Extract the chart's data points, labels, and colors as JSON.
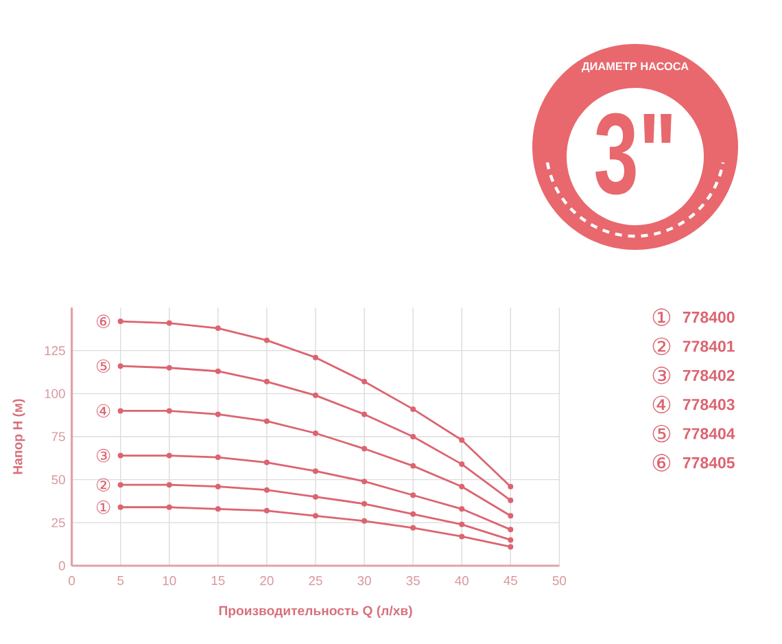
{
  "chart_data": {
    "type": "line",
    "xlabel": "Производительность Q (л/хв)",
    "ylabel": "Напор H (м)",
    "x": [
      5,
      10,
      15,
      20,
      25,
      30,
      35,
      40,
      45
    ],
    "series": [
      {
        "name": "①",
        "color": "#dc6470",
        "values": [
          34,
          34,
          33,
          32,
          29,
          26,
          22,
          17,
          11
        ]
      },
      {
        "name": "②",
        "color": "#dc6470",
        "values": [
          47,
          47,
          46,
          44,
          40,
          36,
          30,
          24,
          15
        ]
      },
      {
        "name": "③",
        "color": "#dc6470",
        "values": [
          64,
          64,
          63,
          60,
          55,
          49,
          41,
          33,
          21
        ]
      },
      {
        "name": "④",
        "color": "#dc6470",
        "values": [
          90,
          90,
          88,
          84,
          77,
          68,
          58,
          46,
          29
        ]
      },
      {
        "name": "⑤",
        "color": "#dc6470",
        "values": [
          116,
          115,
          113,
          107,
          99,
          88,
          75,
          59,
          38
        ]
      },
      {
        "name": "⑥",
        "color": "#dc6470",
        "values": [
          142,
          141,
          138,
          131,
          121,
          107,
          91,
          73,
          46
        ]
      }
    ],
    "xlim": [
      0,
      50
    ],
    "xticks": [
      0,
      5,
      10,
      15,
      20,
      25,
      30,
      35,
      40,
      45,
      50
    ],
    "ylim": [
      0,
      150
    ],
    "yticks": [
      0,
      25,
      50,
      75,
      100,
      125
    ],
    "grid": true,
    "legend": "top left",
    "marker": "circle",
    "annotations": [
      "ДИАМЕТР НАСОСА",
      "3\"",
      "778400",
      "778401",
      "778402",
      "778403",
      "778404",
      "778405"
    ]
  }
}
